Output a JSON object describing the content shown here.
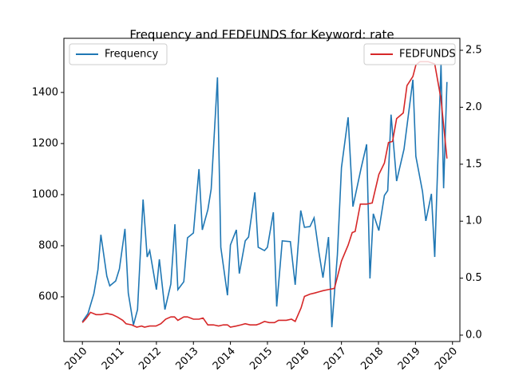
{
  "chart_data": {
    "type": "line",
    "title": "Frequency and FEDFUNDS for Keyword: rate",
    "xlim": [
      2009.5,
      2020.2
    ],
    "xticks": [
      2010,
      2011,
      2012,
      2013,
      2014,
      2015,
      2016,
      2017,
      2018,
      2019,
      2020
    ],
    "ylim": [
      425,
      1612
    ],
    "yticks": [
      600,
      800,
      1000,
      1200,
      1400
    ],
    "y2lim": [
      -0.056,
      2.605
    ],
    "y2ticks": [
      {
        "value": 0,
        "label": "0.0"
      },
      0.5,
      {
        "value": 1,
        "label": "1.0"
      },
      1.5,
      {
        "value": 2,
        "label": "2.0"
      },
      2.5
    ],
    "grid": false,
    "series": [
      {
        "name": "Frequency",
        "color": "#1f77b4",
        "legend": "upper left",
        "x": [
          2010.0,
          2010.15,
          2010.31,
          2010.42,
          2010.5,
          2010.66,
          2010.74,
          2010.9,
          2011.0,
          2011.15,
          2011.24,
          2011.38,
          2011.49,
          2011.64,
          2011.75,
          2011.82,
          2012.0,
          2012.08,
          2012.23,
          2012.39,
          2012.5,
          2012.58,
          2012.74,
          2012.84,
          2013.0,
          2013.15,
          2013.24,
          2013.39,
          2013.48,
          2013.65,
          2013.74,
          2013.92,
          2014.0,
          2014.16,
          2014.24,
          2014.4,
          2014.49,
          2014.66,
          2014.75,
          2014.92,
          2015.0,
          2015.16,
          2015.25,
          2015.4,
          2015.62,
          2015.75,
          2015.9,
          2016.0,
          2016.15,
          2016.26,
          2016.39,
          2016.5,
          2016.65,
          2016.74,
          2016.89,
          2017.0,
          2017.18,
          2017.31,
          2017.53,
          2017.68,
          2017.77,
          2017.86,
          2018.01,
          2018.16,
          2018.25,
          2018.34,
          2018.49,
          2018.69,
          2018.93,
          2019.01,
          2019.19,
          2019.28,
          2019.43,
          2019.52,
          2019.69,
          2019.76,
          2019.85
        ],
        "values": [
          503,
          534,
          612,
          706,
          843,
          681,
          643,
          662,
          709,
          866,
          615,
          490,
          550,
          981,
          756,
          781,
          628,
          747,
          550,
          650,
          884,
          628,
          659,
          831,
          850,
          1100,
          862,
          941,
          1022,
          1459,
          794,
          606,
          803,
          862,
          691,
          819,
          834,
          1009,
          794,
          781,
          794,
          931,
          562,
          819,
          816,
          647,
          938,
          872,
          875,
          909,
          775,
          675,
          834,
          481,
          765,
          1106,
          1303,
          953,
          1103,
          1197,
          672,
          925,
          859,
          997,
          1016,
          1313,
          1053,
          1178,
          1450,
          1150,
          1012,
          897,
          1003,
          756,
          1512,
          1025,
          1441
        ]
      },
      {
        "name": "FEDFUNDS",
        "color": "#d62728",
        "axis": "y2",
        "legend": "upper right",
        "x": [
          2010.0,
          2010.11,
          2010.22,
          2010.37,
          2010.5,
          2010.66,
          2010.81,
          2010.94,
          2011.09,
          2011.18,
          2011.33,
          2011.47,
          2011.6,
          2011.68,
          2011.82,
          2011.99,
          2012.12,
          2012.25,
          2012.39,
          2012.49,
          2012.58,
          2012.74,
          2012.84,
          2013.0,
          2013.15,
          2013.26,
          2013.39,
          2013.54,
          2013.68,
          2013.81,
          2013.92,
          2014.0,
          2014.16,
          2014.29,
          2014.4,
          2014.53,
          2014.7,
          2014.79,
          2014.92,
          2015.05,
          2015.19,
          2015.3,
          2015.4,
          2015.51,
          2015.65,
          2015.75,
          2015.91,
          2016.0,
          2016.15,
          2016.28,
          2016.39,
          2016.5,
          2016.65,
          2016.81,
          2016.89,
          2017.0,
          2017.18,
          2017.29,
          2017.37,
          2017.51,
          2017.68,
          2017.83,
          2018.01,
          2018.16,
          2018.27,
          2018.38,
          2018.49,
          2018.67,
          2018.77,
          2018.93,
          2019.01,
          2019.12,
          2019.34,
          2019.52,
          2019.69,
          2019.85
        ],
        "values": [
          0.11,
          0.15,
          0.2,
          0.18,
          0.18,
          0.19,
          0.18,
          0.16,
          0.13,
          0.1,
          0.09,
          0.07,
          0.08,
          0.07,
          0.08,
          0.08,
          0.1,
          0.14,
          0.16,
          0.16,
          0.13,
          0.16,
          0.16,
          0.14,
          0.14,
          0.15,
          0.09,
          0.09,
          0.08,
          0.09,
          0.09,
          0.07,
          0.08,
          0.09,
          0.1,
          0.09,
          0.09,
          0.1,
          0.12,
          0.11,
          0.11,
          0.13,
          0.13,
          0.13,
          0.14,
          0.12,
          0.24,
          0.34,
          0.36,
          0.37,
          0.38,
          0.39,
          0.4,
          0.41,
          0.51,
          0.65,
          0.79,
          0.9,
          0.91,
          1.15,
          1.15,
          1.16,
          1.41,
          1.51,
          1.69,
          1.7,
          1.9,
          1.95,
          2.19,
          2.27,
          2.37,
          2.4,
          2.4,
          2.38,
          2.07,
          1.55
        ]
      }
    ]
  }
}
